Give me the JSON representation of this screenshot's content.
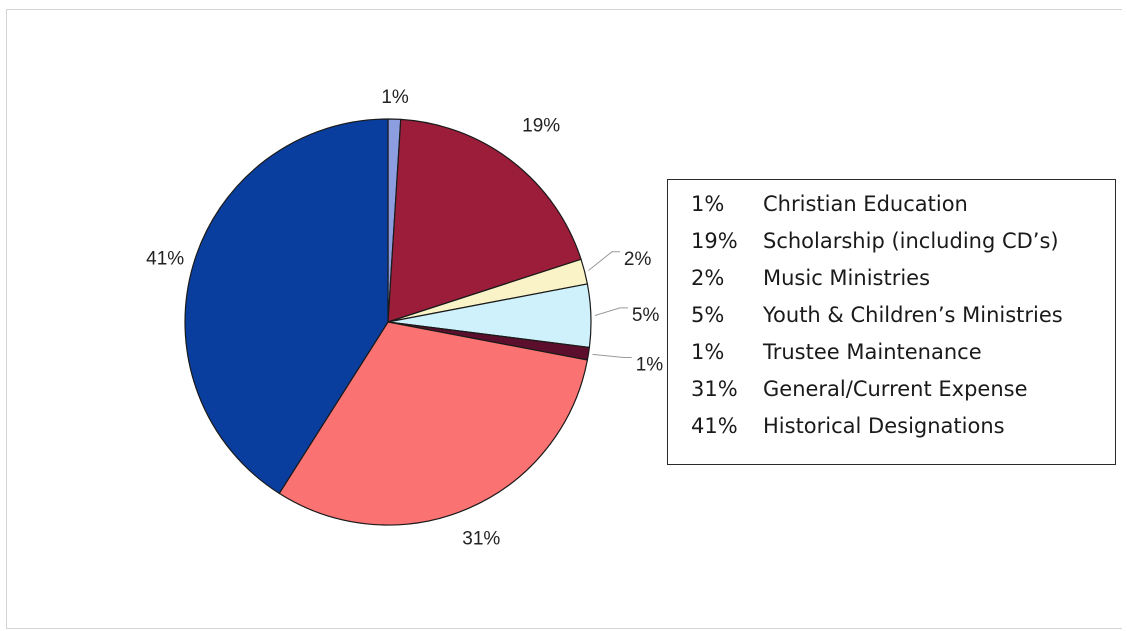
{
  "chart_data": {
    "type": "pie",
    "start_angle_deg": 0,
    "direction": "clockwise",
    "slices": [
      {
        "label": "1%",
        "value": 1,
        "name": "Christian Education",
        "color": "#8c9de0"
      },
      {
        "label": "19%",
        "value": 19,
        "name": "Scholarship (including CD’s)",
        "color": "#9b1d3a"
      },
      {
        "label": "2%",
        "value": 2,
        "name": "Music Ministries",
        "color": "#fbf3c8"
      },
      {
        "label": "5%",
        "value": 5,
        "name": "Youth & Children’s Ministries",
        "color": "#cff1fb"
      },
      {
        "label": "1%",
        "value": 1,
        "name": "Trustee Maintenance",
        "color": "#5b0f2c"
      },
      {
        "label": "31%",
        "value": 31,
        "name": "General/Current Expense",
        "color": "#fb7272"
      },
      {
        "label": "41%",
        "value": 41,
        "name": "Historical Designations",
        "color": "#0a3e9e"
      }
    ],
    "legend": {
      "position": "right",
      "entries": [
        {
          "pct": "1%",
          "name": "Christian Education"
        },
        {
          "pct": "19%",
          "name": "Scholarship (including CD’s)"
        },
        {
          "pct": "2%",
          "name": "Music Ministries"
        },
        {
          "pct": "5%",
          "name": "Youth & Children’s Ministries"
        },
        {
          "pct": "1%",
          "name": "Trustee Maintenance"
        },
        {
          "pct": "31%",
          "name": "General/Current Expense"
        },
        {
          "pct": "41%",
          "name": "Historical Designations"
        }
      ]
    }
  }
}
